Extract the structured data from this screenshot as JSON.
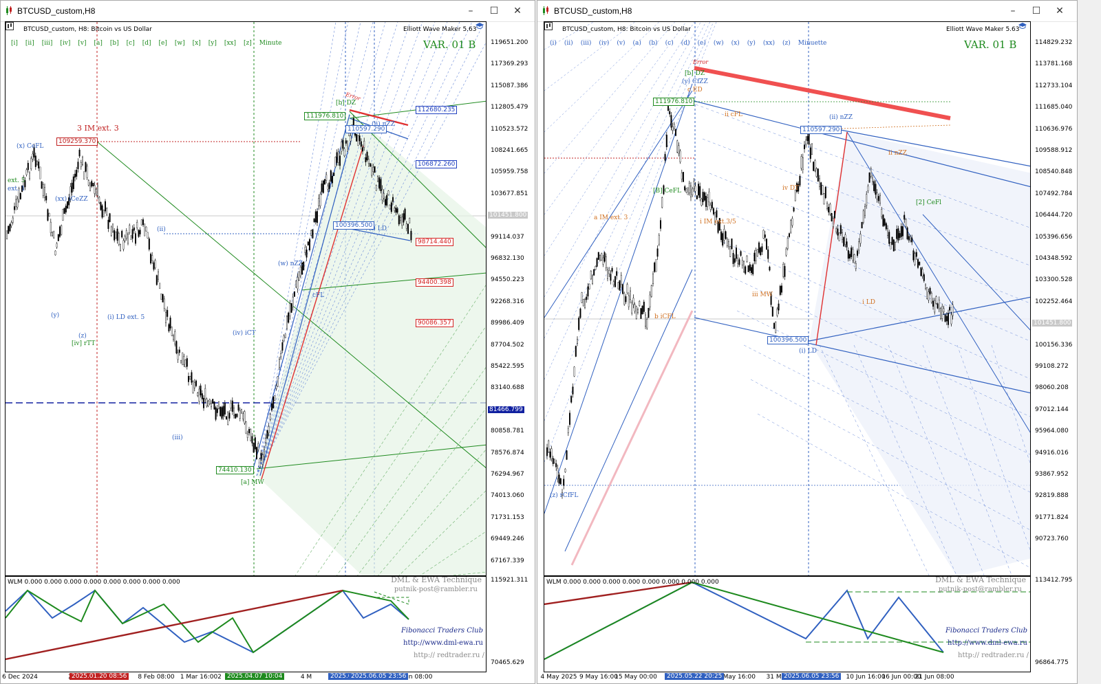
{
  "windows": [
    {
      "title": "BTCUSD_custom,H8",
      "header": "BTCUSD_custom, H8:  Bitcoin vs US Dollar",
      "indicator_name": "Elliott Wave Maker 5.63",
      "variant": "VAR. 01 B",
      "wave_buttons": [
        "[i]",
        "[ii]",
        "[iii]",
        "[iv]",
        "[v]",
        "[a]",
        "[b]",
        "[c]",
        "[d]",
        "[e]",
        "[w]",
        "[x]",
        "[y]",
        "[xx]",
        "[z]"
      ],
      "degree": "Minute",
      "price_ticks": [
        "119651.200",
        "117369.293",
        "115087.386",
        "112805.479",
        "110523.572",
        "108241.665",
        "105959.758",
        "103677.851",
        "101451.800",
        "99114.037",
        "96832.130",
        "94550.223",
        "92268.316",
        "89986.409",
        "87704.502",
        "85422.595",
        "83140.688",
        "81466.799",
        "80858.781",
        "78576.874",
        "76294.967",
        "74013.060",
        "71731.153",
        "69449.246",
        "67167.339"
      ],
      "price_tags": [
        {
          "text": "112680.235",
          "color": "#1f3fbf"
        },
        {
          "text": "106872.260",
          "color": "#1f3fbf"
        },
        {
          "text": "98714.440",
          "color": "#d42020"
        },
        {
          "text": "94400.398",
          "color": "#d42020"
        },
        {
          "text": "90086.357",
          "color": "#d42020"
        }
      ],
      "chart_boxes": [
        {
          "text": "109259.370",
          "color": "#c02020"
        },
        {
          "text": "111976.810",
          "color": "#1e8a1e"
        },
        {
          "text": "110597.290",
          "color": "#3060c0"
        },
        {
          "text": "100396.500",
          "color": "#3060c0"
        },
        {
          "text": "74410.130",
          "color": "#1e8a1e"
        }
      ],
      "wave_labels": [
        {
          "text": "3 IM ext. 3",
          "color": "#c02020"
        },
        {
          "text": "(x) CeFL",
          "color": "#3060c0"
        },
        {
          "text": "ext. 5",
          "color": "#1e8a1e"
        },
        {
          "text": "ext. 1",
          "color": "#3060c0"
        },
        {
          "text": "(xx) iCeZZ",
          "color": "#3060c0"
        },
        {
          "text": "(ii)",
          "color": "#3060c0"
        },
        {
          "text": "(y)",
          "color": "#3060c0"
        },
        {
          "text": "(z)",
          "color": "#3060c0"
        },
        {
          "text": "[iv] rTT",
          "color": "#1e8a1e"
        },
        {
          "text": "(i) LD ext. 5",
          "color": "#3060c0"
        },
        {
          "text": "(iii)",
          "color": "#3060c0"
        },
        {
          "text": "(iv) iCT",
          "color": "#3060c0"
        },
        {
          "text": "(w) nZZ",
          "color": "#3060c0"
        },
        {
          "text": "cFL",
          "color": "#3060c0"
        },
        {
          "text": "[a] MW",
          "color": "#1e8a1e"
        },
        {
          "text": "[b] DZ",
          "color": "#1e8a1e"
        },
        {
          "text": "(ii) nZZ",
          "color": "#3060c0"
        },
        {
          "text": "(i) LD",
          "color": "#3060c0"
        },
        {
          "text": "Error",
          "color": "#d42020"
        }
      ],
      "indicator": {
        "title": "WLM 0.000 0.000 0.000 0.000 0.000 0.000 0.000 0.000",
        "axis_top": "115921.311",
        "axis_bottom": "70465.629",
        "credit_lines": [
          "DML & EWA Technique",
          "putnik-post@rambler.ru",
          "Fibonacci   Traders   Club",
          "http://www.dml-ewa.ru",
          "http://  redtrader.ru  /"
        ]
      },
      "time_ticks": [
        "6 Dec 2024",
        "27 Dec",
        "8 Feb 08:00",
        "1 Mar 16:00",
        "2",
        "4 M",
        "Jun 08:00"
      ],
      "time_tags": [
        {
          "text": "2025.01.20 08:56",
          "color": "#c02020"
        },
        {
          "text": "2025.04.07 10:04",
          "color": "#1e8a1e"
        },
        {
          "text": "2025.05.2",
          "color": "#3060c0"
        },
        {
          "text": "2025.06.05 23:56",
          "color": "#3060c0"
        }
      ]
    },
    {
      "title": "BTCUSD_custom,H8",
      "header": "BTCUSD_custom, H8:  Bitcoin vs US Dollar",
      "indicator_name": "Elliott Wave Maker 5.63",
      "variant": "VAR. 01 B",
      "wave_buttons": [
        "(i)",
        "(ii)",
        "(iii)",
        "(iv)",
        "(v)",
        "(a)",
        "(b)",
        "(c)",
        "(d)",
        "(e)",
        "(w)",
        "(x)",
        "(y)",
        "(xx)",
        "(z)"
      ],
      "degree": "Minuette",
      "price_ticks": [
        "114829.232",
        "113781.168",
        "112733.104",
        "111685.040",
        "110636.976",
        "109588.912",
        "108540.848",
        "107492.784",
        "106444.720",
        "105396.656",
        "104348.592",
        "103300.528",
        "102252.464",
        "101451.800",
        "100156.336",
        "99108.272",
        "98060.208",
        "97012.144",
        "95964.080",
        "94916.016",
        "93867.952",
        "92819.888",
        "91771.824",
        "90723.760"
      ],
      "price_tags": [],
      "chart_boxes": [
        {
          "text": "111976.810",
          "color": "#1e8a1e"
        },
        {
          "text": "110597.290",
          "color": "#3060c0"
        },
        {
          "text": "100396.500",
          "color": "#3060c0"
        }
      ],
      "wave_labels": [
        {
          "text": "[b] DZ",
          "color": "#1e8a1e"
        },
        {
          "text": "(y) CfZZ",
          "color": "#3060c0"
        },
        {
          "text": "c ED",
          "color": "#d07020"
        },
        {
          "text": "Error",
          "color": "#d42020"
        },
        {
          "text": "ii cFL",
          "color": "#d07020"
        },
        {
          "text": "(ii) nZZ",
          "color": "#3060c0"
        },
        {
          "text": "ii nZZ",
          "color": "#d07020"
        },
        {
          "text": "a IM ext. 3",
          "color": "#d07020"
        },
        {
          "text": "i IM ext.3/5",
          "color": "#d07020"
        },
        {
          "text": "iv DT",
          "color": "#d07020"
        },
        {
          "text": "[2] CeFl",
          "color": "#1e8a1e"
        },
        {
          "text": "[B] CeFL",
          "color": "#1e8a1e"
        },
        {
          "text": "b iCFL",
          "color": "#d07020"
        },
        {
          "text": "iii MW",
          "color": "#d07020"
        },
        {
          "text": "i LD",
          "color": "#d07020"
        },
        {
          "text": "(i) LD",
          "color": "#3060c0"
        },
        {
          "text": "(z) rCfFL",
          "color": "#3060c0"
        }
      ],
      "indicator": {
        "title": "WLM 0.000 0.000 0.000 0.000 0.000 0.000 0.000 0.000",
        "axis_top": "113412.795",
        "axis_bottom": "96864.775",
        "credit_lines": [
          "DML & EWA Technique",
          "putnik-post@rambler.ru",
          "Fibonacci   Traders   Club",
          "http://www.dml-ewa.ru",
          "http://  redtrader.ru  /"
        ]
      },
      "time_ticks": [
        "4 May 2025",
        "9 May 16:00",
        "15 May 00:00",
        "5 May 16:00",
        "31 May",
        "10 Jun 16:00",
        "16 Jun 00:00",
        "21 Jun 08:00"
      ],
      "time_tags": [
        {
          "text": "2025.05.22 20:25",
          "color": "#3060c0"
        },
        {
          "text": "2025.06.05 23:56",
          "color": "#3060c0"
        }
      ]
    }
  ],
  "colors": {
    "bull_green": "#1e8a1e",
    "wave_blue": "#3060c0",
    "error_red": "#e03030",
    "wlm_red": "#a02020"
  }
}
